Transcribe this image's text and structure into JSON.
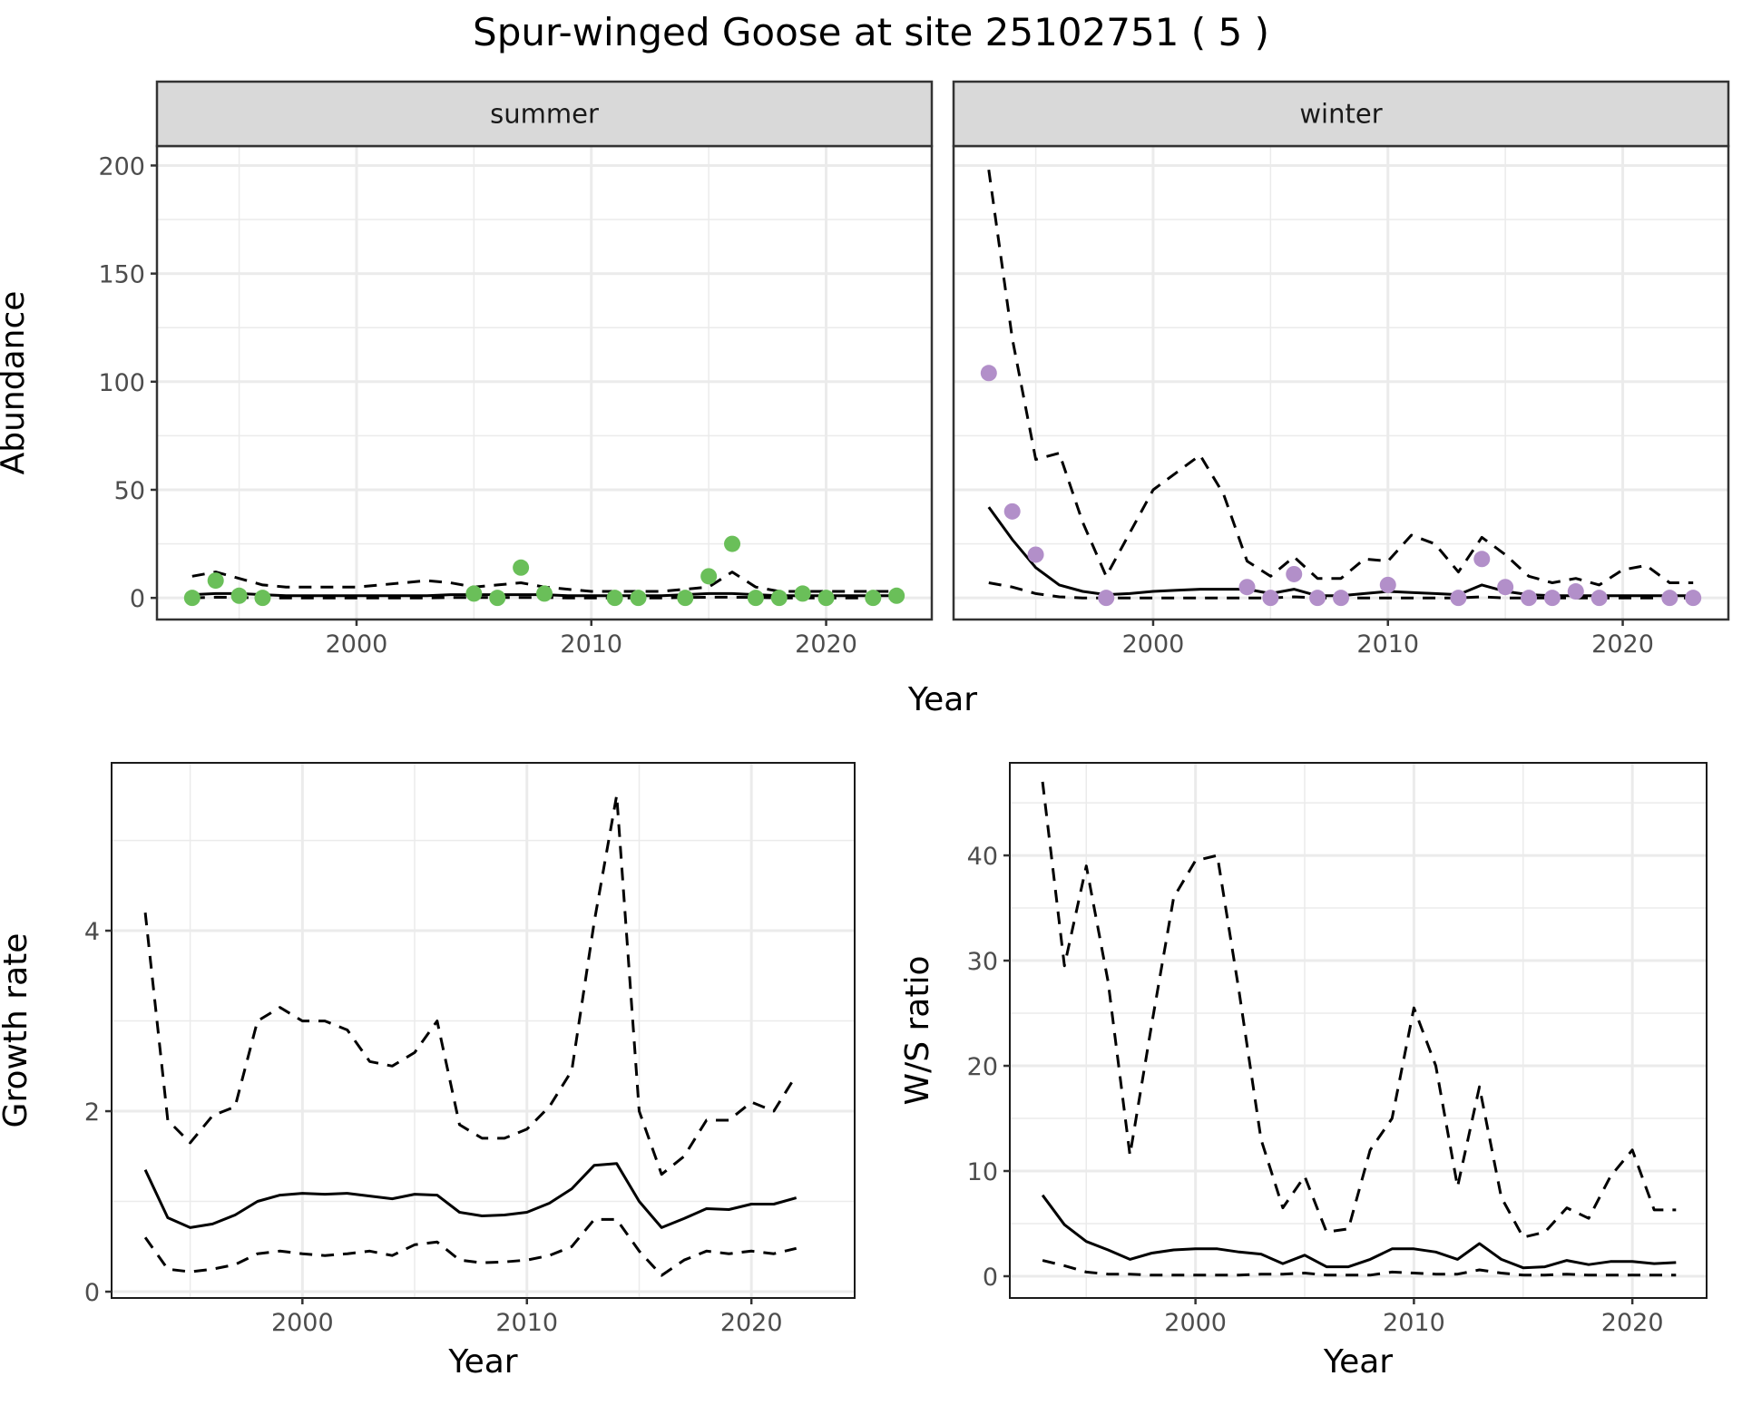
{
  "title": "Spur-winged Goose at site 25102751 ( 5 )",
  "chart_data": [
    {
      "type": "line",
      "facet": "summer",
      "xlabel": "Year",
      "ylabel": "Abundance",
      "xlim": [
        1991.5,
        2024.5
      ],
      "ylim": [
        -10,
        209
      ],
      "xticks": [
        2000,
        2010,
        2020
      ],
      "yticks": [
        0,
        50,
        100,
        150,
        200
      ],
      "grid": true,
      "point_color": "#6abf59",
      "points": {
        "x": [
          1993,
          1994,
          1995,
          1996,
          2005,
          2006,
          2007,
          2008,
          2011,
          2012,
          2014,
          2015,
          2016,
          2017,
          2018,
          2019,
          2020,
          2022,
          2023
        ],
        "y": [
          0,
          8,
          1,
          0,
          2,
          0,
          14,
          2,
          0,
          0,
          0,
          10,
          25,
          0,
          0,
          2,
          0,
          0,
          1
        ]
      },
      "x": [
        1993,
        1994,
        1995,
        1996,
        1997,
        1998,
        1999,
        2000,
        2001,
        2002,
        2003,
        2004,
        2005,
        2006,
        2007,
        2008,
        2009,
        2010,
        2011,
        2012,
        2013,
        2014,
        2015,
        2016,
        2017,
        2018,
        2019,
        2020,
        2021,
        2022,
        2023
      ],
      "series": [
        {
          "style": "solid",
          "values": [
            1.5,
            2,
            2,
            1.5,
            1,
            1,
            1,
            1,
            1,
            1,
            1,
            1.5,
            1.5,
            1.5,
            1.5,
            1.5,
            1,
            1,
            1,
            1,
            1,
            1.5,
            2,
            2,
            1.5,
            1,
            1,
            1,
            1,
            1,
            1
          ]
        },
        {
          "style": "dashed",
          "values": [
            10,
            12,
            9,
            6,
            5,
            5,
            5,
            5,
            6,
            7,
            8,
            7,
            5,
            6,
            7,
            5,
            4,
            3,
            3,
            3,
            3,
            4,
            5,
            12,
            5,
            3,
            3,
            3,
            3,
            3,
            3
          ]
        },
        {
          "style": "dashed",
          "values": [
            0,
            0.3,
            0.2,
            0,
            0,
            0,
            0,
            0,
            0,
            0,
            0,
            0.2,
            0.2,
            0.2,
            0.2,
            0.2,
            0,
            0,
            0,
            0,
            0,
            0.2,
            0.3,
            0.3,
            0.2,
            0,
            0,
            0,
            0,
            0,
            0
          ]
        }
      ]
    },
    {
      "type": "line",
      "facet": "winter",
      "xlabel": "Year",
      "ylabel": "Abundance",
      "xlim": [
        1991.5,
        2024.5
      ],
      "ylim": [
        -10,
        209
      ],
      "xticks": [
        2000,
        2010,
        2020
      ],
      "yticks": [
        0,
        50,
        100,
        150,
        200
      ],
      "grid": true,
      "point_color": "#b28fc9",
      "points": {
        "x": [
          1993,
          1994,
          1995,
          1998,
          2004,
          2005,
          2006,
          2007,
          2008,
          2010,
          2013,
          2014,
          2015,
          2016,
          2017,
          2018,
          2019,
          2022,
          2023
        ],
        "y": [
          104,
          40,
          20,
          0,
          5,
          0,
          11,
          0,
          0,
          6,
          0,
          18,
          5,
          0,
          0,
          3,
          0,
          0,
          0
        ]
      },
      "x": [
        1993,
        1994,
        1995,
        1996,
        1997,
        1998,
        1999,
        2000,
        2001,
        2002,
        2003,
        2004,
        2005,
        2006,
        2007,
        2008,
        2009,
        2010,
        2011,
        2012,
        2013,
        2014,
        2015,
        2016,
        2017,
        2018,
        2019,
        2020,
        2021,
        2022,
        2023
      ],
      "series": [
        {
          "style": "solid",
          "values": [
            42,
            27,
            14,
            6,
            3,
            1.5,
            2,
            3,
            3.5,
            4,
            4,
            4,
            2,
            4,
            1,
            1,
            2,
            3,
            2.5,
            2,
            1.5,
            6,
            3,
            1.5,
            1,
            1,
            1,
            1,
            1,
            1,
            1
          ]
        },
        {
          "style": "dashed",
          "values": [
            198,
            120,
            64,
            67,
            35,
            10,
            30,
            50,
            58,
            66,
            48,
            17,
            10,
            19,
            9,
            9,
            18,
            17,
            29,
            25,
            12,
            28,
            20,
            10,
            7,
            9,
            6,
            13,
            15,
            7,
            7
          ]
        },
        {
          "style": "dashed",
          "values": [
            7,
            5,
            2,
            0.5,
            0,
            0,
            0,
            0,
            0,
            0,
            0,
            0,
            0,
            0.5,
            0,
            0,
            0,
            0,
            0,
            0,
            0,
            0.5,
            0,
            0,
            0,
            0,
            0,
            0,
            0,
            0,
            0
          ]
        }
      ]
    },
    {
      "type": "line",
      "xlabel": "Year",
      "ylabel": "Growth rate",
      "xlim": [
        1991.5,
        2024.6
      ],
      "ylim": [
        -0.07,
        5.86
      ],
      "xticks": [
        2000,
        2010,
        2020
      ],
      "yticks": [
        0,
        2,
        4
      ],
      "grid": true,
      "x": [
        1993,
        1994,
        1995,
        1996,
        1997,
        1998,
        1999,
        2000,
        2001,
        2002,
        2003,
        2004,
        2005,
        2006,
        2007,
        2008,
        2009,
        2010,
        2011,
        2012,
        2013,
        2014,
        2015,
        2016,
        2017,
        2018,
        2019,
        2020,
        2021,
        2022
      ],
      "series": [
        {
          "style": "solid",
          "values": [
            1.35,
            0.82,
            0.71,
            0.75,
            0.85,
            1.0,
            1.07,
            1.09,
            1.08,
            1.09,
            1.06,
            1.03,
            1.08,
            1.07,
            0.88,
            0.84,
            0.85,
            0.88,
            0.98,
            1.14,
            1.4,
            1.42,
            1.0,
            0.71,
            0.81,
            0.92,
            0.91,
            0.97,
            0.97,
            1.04
          ]
        },
        {
          "style": "dashed",
          "values": [
            4.2,
            1.9,
            1.65,
            1.95,
            2.05,
            3.0,
            3.15,
            3.0,
            3.0,
            2.9,
            2.55,
            2.5,
            2.65,
            3.0,
            1.85,
            1.7,
            1.7,
            1.8,
            2.05,
            2.45,
            4.1,
            5.5,
            2.0,
            1.3,
            1.5,
            1.9,
            1.9,
            2.1,
            2.0,
            2.4
          ]
        },
        {
          "style": "dashed",
          "values": [
            0.6,
            0.25,
            0.22,
            0.25,
            0.3,
            0.42,
            0.45,
            0.42,
            0.4,
            0.42,
            0.45,
            0.4,
            0.52,
            0.55,
            0.35,
            0.32,
            0.33,
            0.35,
            0.4,
            0.5,
            0.8,
            0.8,
            0.45,
            0.18,
            0.35,
            0.45,
            0.42,
            0.45,
            0.42,
            0.48
          ]
        }
      ]
    },
    {
      "type": "line",
      "xlabel": "Year",
      "ylabel": "W/S ratio",
      "xlim": [
        1991.5,
        2023.4
      ],
      "ylim": [
        -2.07,
        48.8
      ],
      "xticks": [
        2000,
        2010,
        2020
      ],
      "yticks": [
        0,
        10,
        20,
        30,
        40
      ],
      "grid": true,
      "x": [
        1993,
        1994,
        1995,
        1996,
        1997,
        1998,
        1999,
        2000,
        2001,
        2002,
        2003,
        2004,
        2005,
        2006,
        2007,
        2008,
        2009,
        2010,
        2011,
        2012,
        2013,
        2014,
        2015,
        2016,
        2017,
        2018,
        2019,
        2020,
        2021,
        2022
      ],
      "series": [
        {
          "style": "solid",
          "values": [
            7.7,
            4.9,
            3.3,
            2.5,
            1.6,
            2.2,
            2.5,
            2.6,
            2.6,
            2.3,
            2.1,
            1.2,
            2.0,
            0.9,
            0.9,
            1.6,
            2.6,
            2.6,
            2.3,
            1.6,
            3.1,
            1.6,
            0.8,
            0.9,
            1.5,
            1.1,
            1.4,
            1.4,
            1.2,
            1.3
          ]
        },
        {
          "style": "dashed",
          "values": [
            47,
            29.5,
            39,
            28,
            11.5,
            24,
            36,
            39.5,
            40,
            27,
            13,
            6.5,
            9.5,
            4.2,
            4.5,
            12,
            15,
            25.5,
            20,
            8.5,
            18,
            7.5,
            3.7,
            4.2,
            6.5,
            5.5,
            9.5,
            12,
            6.3,
            6.3
          ]
        },
        {
          "style": "dashed",
          "values": [
            1.5,
            1.0,
            0.4,
            0.2,
            0.2,
            0.1,
            0.1,
            0.1,
            0.1,
            0.1,
            0.2,
            0.2,
            0.3,
            0.1,
            0.1,
            0.1,
            0.4,
            0.3,
            0.2,
            0.2,
            0.6,
            0.3,
            0.1,
            0.1,
            0.2,
            0.1,
            0.1,
            0.1,
            0.1,
            0.1
          ]
        }
      ]
    }
  ]
}
